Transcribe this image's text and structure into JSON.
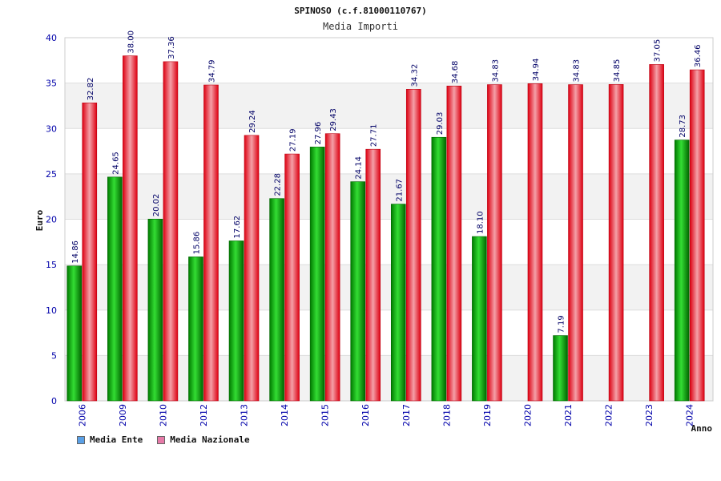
{
  "chart_data": {
    "type": "bar",
    "title": "SPINOSO (c.f.81000110767)",
    "subtitle": "Media Importi",
    "xlabel": "Anno",
    "ylabel": "Euro",
    "ylim": [
      0,
      40
    ],
    "yticks": [
      0,
      5,
      10,
      15,
      20,
      25,
      30,
      35,
      40
    ],
    "categories": [
      "2006",
      "2009",
      "2010",
      "2012",
      "2013",
      "2014",
      "2015",
      "2016",
      "2017",
      "2018",
      "2019",
      "2020",
      "2021",
      "2022",
      "2023",
      "2024"
    ],
    "series": [
      {
        "name": "Media Ente",
        "color": "#00aa00",
        "values": [
          14.86,
          24.65,
          20.02,
          15.86,
          17.62,
          22.28,
          27.96,
          24.14,
          21.67,
          29.03,
          18.1,
          null,
          7.19,
          null,
          null,
          28.73
        ],
        "labels": [
          "14.86",
          "24.65",
          "20.02",
          "15.86",
          "17.62",
          "22.28",
          "27.96",
          "24.14",
          "21.67",
          "29.03",
          "18.10",
          null,
          "7.19",
          null,
          null,
          "28.73"
        ]
      },
      {
        "name": "Media Nazionale",
        "color": "#ee1122",
        "values": [
          32.82,
          38.0,
          37.36,
          34.79,
          29.24,
          27.19,
          29.43,
          27.71,
          34.32,
          34.68,
          34.83,
          34.94,
          34.83,
          34.85,
          37.05,
          36.46
        ],
        "labels": [
          "32.82",
          "38.00",
          "37.36",
          "34.79",
          "29.24",
          "27.19",
          "29.43",
          "27.71",
          "34.32",
          "34.68",
          "34.83",
          "34.94",
          "34.83",
          "34.85",
          "37.05",
          "36.46"
        ]
      }
    ],
    "legend": [
      {
        "label": "Media Ente",
        "color": "#5aa0e6"
      },
      {
        "label": "Media Nazionale",
        "color": "#e67aa8"
      }
    ],
    "legend_position": "bottom-left",
    "grid": true
  }
}
